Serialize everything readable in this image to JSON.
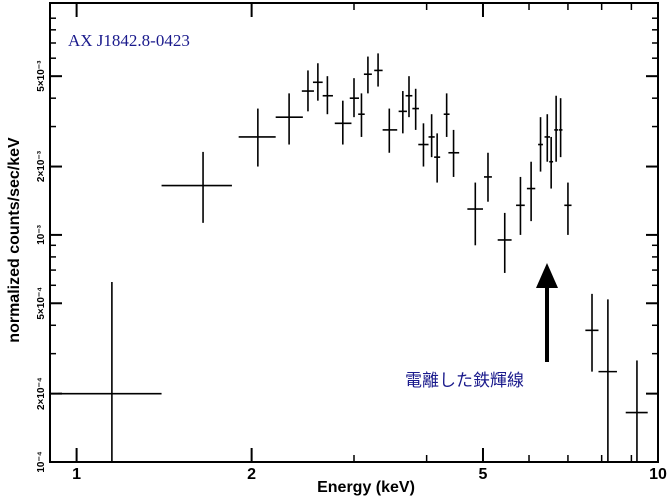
{
  "chart_data": {
    "type": "scatter",
    "title": "AX J1842.8-0423",
    "xlabel": "Energy (keV)",
    "ylabel": "normalized counts/sec/keV",
    "xscale": "log",
    "yscale": "log",
    "xlim": [
      0.9,
      10
    ],
    "ylim": [
      0.0001,
      0.0105
    ],
    "xticks": [
      {
        "value": 1,
        "label": "1"
      },
      {
        "value": 2,
        "label": "2"
      },
      {
        "value": 5,
        "label": "5"
      },
      {
        "value": 10,
        "label": "10"
      }
    ],
    "yticks": [
      {
        "value": 0.0001,
        "label": "10⁻⁴"
      },
      {
        "value": 0.0002,
        "label": "2×10⁻⁴"
      },
      {
        "value": 0.0005,
        "label": "5×10⁻⁴"
      },
      {
        "value": 0.001,
        "label": "10⁻³"
      },
      {
        "value": 0.002,
        "label": "2×10⁻³"
      },
      {
        "value": 0.005,
        "label": "5×10⁻³"
      }
    ],
    "annotation": {
      "text": "電離した鉄輝線",
      "arrow_to_energy": 6.7
    },
    "series": [
      {
        "name": "spectrum",
        "points": [
          {
            "x": 1.15,
            "xlo": 0.93,
            "xhi": 1.4,
            "y": 0.0002,
            "ylo": 0.0001,
            "yhi": 0.00062
          },
          {
            "x": 1.65,
            "xlo": 1.4,
            "xhi": 1.85,
            "y": 0.00165,
            "ylo": 0.00113,
            "yhi": 0.00232
          },
          {
            "x": 2.05,
            "xlo": 1.9,
            "xhi": 2.2,
            "y": 0.0027,
            "ylo": 0.002,
            "yhi": 0.0036
          },
          {
            "x": 2.32,
            "xlo": 2.2,
            "xhi": 2.45,
            "y": 0.0033,
            "ylo": 0.0025,
            "yhi": 0.0042
          },
          {
            "x": 2.5,
            "xlo": 2.44,
            "xhi": 2.56,
            "y": 0.0043,
            "ylo": 0.0035,
            "yhi": 0.0053
          },
          {
            "x": 2.6,
            "xlo": 2.55,
            "xhi": 2.65,
            "y": 0.0047,
            "ylo": 0.0039,
            "yhi": 0.0057
          },
          {
            "x": 2.7,
            "xlo": 2.65,
            "xhi": 2.76,
            "y": 0.0041,
            "ylo": 0.0034,
            "yhi": 0.005
          },
          {
            "x": 2.87,
            "xlo": 2.78,
            "xhi": 2.97,
            "y": 0.0031,
            "ylo": 0.0025,
            "yhi": 0.0039
          },
          {
            "x": 3.0,
            "xlo": 2.95,
            "xhi": 3.06,
            "y": 0.004,
            "ylo": 0.0033,
            "yhi": 0.0049
          },
          {
            "x": 3.09,
            "xlo": 3.05,
            "xhi": 3.13,
            "y": 0.0034,
            "ylo": 0.0027,
            "yhi": 0.0042
          },
          {
            "x": 3.17,
            "xlo": 3.12,
            "xhi": 3.22,
            "y": 0.0051,
            "ylo": 0.0042,
            "yhi": 0.0061
          },
          {
            "x": 3.3,
            "xlo": 3.25,
            "xhi": 3.36,
            "y": 0.0053,
            "ylo": 0.0045,
            "yhi": 0.0063
          },
          {
            "x": 3.45,
            "xlo": 3.36,
            "xhi": 3.56,
            "y": 0.0029,
            "ylo": 0.0023,
            "yhi": 0.0036
          },
          {
            "x": 3.64,
            "xlo": 3.58,
            "xhi": 3.7,
            "y": 0.0035,
            "ylo": 0.0028,
            "yhi": 0.0043
          },
          {
            "x": 3.73,
            "xlo": 3.68,
            "xhi": 3.78,
            "y": 0.0041,
            "ylo": 0.0033,
            "yhi": 0.005
          },
          {
            "x": 3.83,
            "xlo": 3.78,
            "xhi": 3.88,
            "y": 0.0036,
            "ylo": 0.0029,
            "yhi": 0.0044
          },
          {
            "x": 3.95,
            "xlo": 3.87,
            "xhi": 4.03,
            "y": 0.0025,
            "ylo": 0.002,
            "yhi": 0.0031
          },
          {
            "x": 4.08,
            "xlo": 4.03,
            "xhi": 4.13,
            "y": 0.0027,
            "ylo": 0.0022,
            "yhi": 0.0034
          },
          {
            "x": 4.17,
            "xlo": 4.12,
            "xhi": 4.22,
            "y": 0.0022,
            "ylo": 0.0017,
            "yhi": 0.0028
          },
          {
            "x": 4.33,
            "xlo": 4.28,
            "xhi": 4.38,
            "y": 0.0034,
            "ylo": 0.0027,
            "yhi": 0.0042
          },
          {
            "x": 4.45,
            "xlo": 4.36,
            "xhi": 4.55,
            "y": 0.0023,
            "ylo": 0.0018,
            "yhi": 0.0029
          },
          {
            "x": 4.85,
            "xlo": 4.7,
            "xhi": 5.0,
            "y": 0.0013,
            "ylo": 0.0009,
            "yhi": 0.0017
          },
          {
            "x": 5.1,
            "xlo": 5.02,
            "xhi": 5.18,
            "y": 0.0018,
            "ylo": 0.0014,
            "yhi": 0.0023
          },
          {
            "x": 5.45,
            "xlo": 5.3,
            "xhi": 5.6,
            "y": 0.00095,
            "ylo": 0.00068,
            "yhi": 0.00125
          },
          {
            "x": 5.8,
            "xlo": 5.7,
            "xhi": 5.9,
            "y": 0.00135,
            "ylo": 0.001,
            "yhi": 0.0018
          },
          {
            "x": 6.05,
            "xlo": 5.95,
            "xhi": 6.15,
            "y": 0.0016,
            "ylo": 0.00115,
            "yhi": 0.0021
          },
          {
            "x": 6.28,
            "xlo": 6.22,
            "xhi": 6.34,
            "y": 0.0025,
            "ylo": 0.0019,
            "yhi": 0.0033
          },
          {
            "x": 6.45,
            "xlo": 6.38,
            "xhi": 6.52,
            "y": 0.0027,
            "ylo": 0.0021,
            "yhi": 0.0034
          },
          {
            "x": 6.55,
            "xlo": 6.5,
            "xhi": 6.6,
            "y": 0.0021,
            "ylo": 0.0016,
            "yhi": 0.0027
          },
          {
            "x": 6.68,
            "xlo": 6.63,
            "xhi": 6.73,
            "y": 0.0029,
            "ylo": 0.0021,
            "yhi": 0.0041
          },
          {
            "x": 6.8,
            "xlo": 6.75,
            "xhi": 6.85,
            "y": 0.0029,
            "ylo": 0.0022,
            "yhi": 0.004
          },
          {
            "x": 7.0,
            "xlo": 6.9,
            "xhi": 7.1,
            "y": 0.00135,
            "ylo": 0.001,
            "yhi": 0.0017
          },
          {
            "x": 7.7,
            "xlo": 7.5,
            "xhi": 7.9,
            "y": 0.00038,
            "ylo": 0.00025,
            "yhi": 0.00055
          },
          {
            "x": 8.2,
            "xlo": 7.9,
            "xhi": 8.5,
            "y": 0.00025,
            "ylo": 0.0001,
            "yhi": 0.00052
          },
          {
            "x": 9.2,
            "xlo": 8.8,
            "xhi": 9.6,
            "y": 0.000165,
            "ylo": 0.0001,
            "yhi": 0.00028
          }
        ]
      }
    ]
  }
}
